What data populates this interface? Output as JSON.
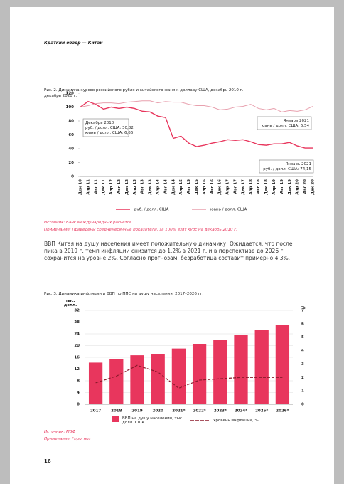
{
  "header": {
    "title": "Краткий обзор — Китай"
  },
  "paragraph": "ВВП Китая на душу населения имеет положительную динамику. Ожидается, что после пика в 2019 г. темп инфляции снизится до 1,2% в 2021 г. и в перспективе до 2026 г. сохранится на уровне 2%. Согласно прогнозам, безработица составит примерно 4,3%.",
  "page_number": "16",
  "chart_data": [
    {
      "type": "line",
      "title": "Рис. 2. Динамика курсов российского рубля и китайского юаня к доллару США, декабрь 2010 г. - декабрь 2020 г.",
      "categories": [
        "Дек 10",
        "Апр 11",
        "Авг 11",
        "Дек 11",
        "Апр 12",
        "Авг 12",
        "Дек 12",
        "Апр 13",
        "Авг 13",
        "Дек 13",
        "Апр 14",
        "Авг 14",
        "Дек 14",
        "Апр 15",
        "Авг 15",
        "Дек 15",
        "Апр 16",
        "Авг 16",
        "Дек 16",
        "Апр 17",
        "Авг 17",
        "Дек 17",
        "Апр 18",
        "Авг 18",
        "Дек 18",
        "Апр 19",
        "Авг 19",
        "Дек 19",
        "Апр 20",
        "Авг 20",
        "Дек 20"
      ],
      "series": [
        {
          "name": "руб. / долл. США",
          "color": "#e8365d",
          "values": [
            100,
            108,
            104,
            97,
            100,
            98,
            100,
            98,
            94,
            93,
            87,
            85,
            55,
            58,
            48,
            43,
            45,
            48,
            50,
            53,
            52,
            53,
            50,
            46,
            45,
            47,
            47,
            49,
            44,
            41,
            41
          ]
        },
        {
          "name": "юань / долл. США",
          "color": "#e8a0ae",
          "values": [
            100,
            102,
            105,
            106,
            106,
            105,
            107,
            108,
            109,
            109,
            106,
            108,
            107,
            107,
            104,
            102,
            102,
            100,
            96,
            97,
            100,
            101,
            104,
            98,
            96,
            98,
            93,
            95,
            94,
            96,
            101
          ]
        }
      ],
      "ylim": [
        0,
        120
      ],
      "yticks": [
        0,
        20,
        40,
        60,
        80,
        100,
        120
      ],
      "annotations": [
        [
          "Декабрь 2010",
          "руб. / долл. США: 30,82",
          "юань / долл. США: 6,66"
        ],
        [
          "Январь 2021",
          "юань / долл. США: 6,54"
        ],
        [
          "Январь 2021",
          "руб. / долл. США: 74,15"
        ]
      ],
      "source": "Источник: Банк международных расчетов",
      "note": "Примечание: Приведены среднемесячные показатели, за 100% взят курс на декабрь 2010 г."
    },
    {
      "type": "bar",
      "title": "Рис. 3. Динамика инфляции и ВВП по ППС на душу населения, 2017–2026 гг.",
      "categories": [
        "2017",
        "2018",
        "2019",
        "2020",
        "2021*",
        "2022*",
        "2023*",
        "2024*",
        "2025*",
        "2026*"
      ],
      "series": [
        {
          "name": "ВВП на душу населения, тыс. долл. США",
          "color": "#e8365d",
          "values": [
            14.2,
            15.5,
            16.7,
            17.2,
            19.0,
            20.5,
            22.0,
            23.6,
            25.3,
            27.0
          ]
        },
        {
          "name": "Уровень инфляции, %",
          "color": "#8b1a2b",
          "axis": "y2",
          "values": [
            1.6,
            2.1,
            2.9,
            2.4,
            1.2,
            1.8,
            1.9,
            2.0,
            2.0,
            2.0
          ]
        }
      ],
      "ylabel": "тыс. долл.",
      "y2label": "%",
      "ylim": [
        0,
        32
      ],
      "yticks": [
        0,
        4,
        8,
        12,
        16,
        20,
        24,
        28,
        32
      ],
      "y2lim": [
        0,
        7
      ],
      "y2ticks": [
        0,
        1,
        2,
        3,
        4,
        5,
        6,
        7
      ],
      "grid": true,
      "source": "Источник: МВФ",
      "note": "Примечание: *прогноз"
    }
  ]
}
